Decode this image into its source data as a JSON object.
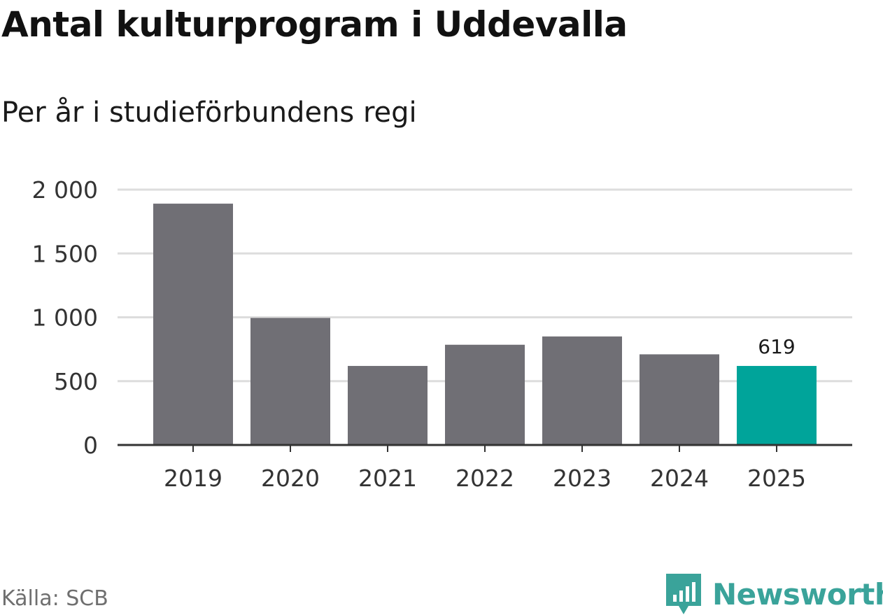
{
  "title": "Antal kulturprogram i Uddevalla",
  "subtitle": "Per år i studieförbundens regi",
  "source": "Källa: SCB",
  "brand": {
    "name": "Newsworthy",
    "logo_icon": "newsworthy-logo-icon",
    "color": "#3aa39a"
  },
  "colors": {
    "bar": "#706f75",
    "highlight": "#00a49a",
    "grid": "#dddddd",
    "axis": "#333333"
  },
  "chart_data": {
    "type": "bar",
    "title": "Antal kulturprogram i Uddevalla",
    "subtitle": "Per år i studieförbundens regi",
    "categories": [
      "2019",
      "2020",
      "2021",
      "2022",
      "2023",
      "2024",
      "2025"
    ],
    "values": [
      1890,
      995,
      619,
      785,
      850,
      710,
      619
    ],
    "highlight_index": 6,
    "data_labels": [
      {
        "index": 6,
        "text": "619"
      }
    ],
    "yticks": [
      0,
      500,
      1000,
      1500,
      2000
    ],
    "ytick_labels": [
      "0",
      "500",
      "1 000",
      "1 500",
      "2 000"
    ],
    "ylim": [
      0,
      2000
    ],
    "xlabel": "",
    "ylabel": "",
    "grid": true,
    "legend": "none"
  }
}
